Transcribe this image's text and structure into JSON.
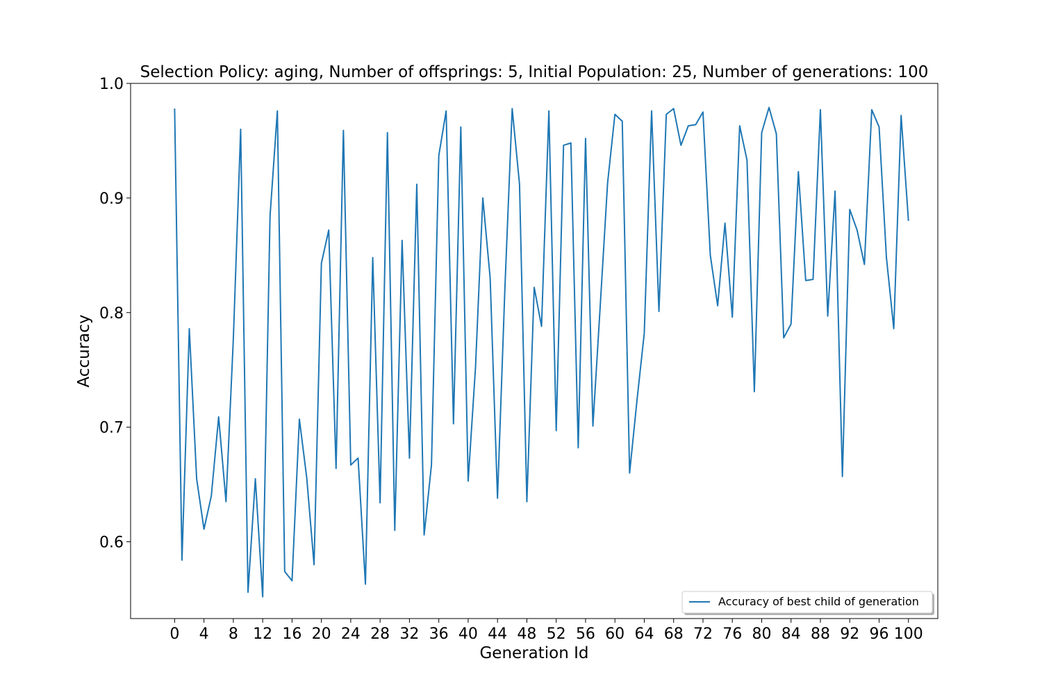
{
  "colors": {
    "line": "#1f77b4",
    "axes": "#000000",
    "background": "#ffffff"
  },
  "chart_data": {
    "type": "line",
    "title": "Selection Policy: aging, Number of offsprings: 5, Initial Population: 25, Number of generations: 100",
    "xlabel": "Generation Id",
    "ylabel": "Accuracy",
    "xlim": [
      -6,
      104
    ],
    "ylim": [
      0.533,
      1.0
    ],
    "xticks": [
      0,
      4,
      8,
      12,
      16,
      20,
      24,
      28,
      32,
      36,
      40,
      44,
      48,
      52,
      56,
      60,
      64,
      68,
      72,
      76,
      80,
      84,
      88,
      92,
      96,
      100
    ],
    "xtick_labels": [
      "0",
      "4",
      "8",
      "12",
      "16",
      "20",
      "24",
      "28",
      "32",
      "36",
      "40",
      "44",
      "48",
      "52",
      "56",
      "60",
      "64",
      "68",
      "72",
      "76",
      "80",
      "84",
      "88",
      "92",
      "96",
      "100"
    ],
    "yticks": [
      0.6,
      0.7,
      0.8,
      0.9,
      1.0
    ],
    "ytick_labels": [
      "0.6",
      "0.7",
      "0.8",
      "0.9",
      "1.0"
    ],
    "grid": false,
    "legend_position": "lower-right",
    "series": [
      {
        "name": "Accuracy of best child of generation",
        "x": [
          0,
          1,
          2,
          3,
          4,
          5,
          6,
          7,
          8,
          9,
          10,
          11,
          12,
          13,
          14,
          15,
          16,
          17,
          18,
          19,
          20,
          21,
          22,
          23,
          24,
          25,
          26,
          27,
          28,
          29,
          30,
          31,
          32,
          33,
          34,
          35,
          36,
          37,
          38,
          39,
          40,
          41,
          42,
          43,
          44,
          45,
          46,
          47,
          48,
          49,
          50,
          51,
          52,
          53,
          54,
          55,
          56,
          57,
          58,
          59,
          60,
          61,
          62,
          63,
          64,
          65,
          66,
          67,
          68,
          69,
          70,
          71,
          72,
          73,
          74,
          75,
          76,
          77,
          78,
          79,
          80,
          81,
          82,
          83,
          84,
          85,
          86,
          87,
          88,
          89,
          90,
          91,
          92,
          93,
          94,
          95,
          96,
          97,
          98,
          99,
          100
        ],
        "values": [
          0.978,
          0.584,
          0.786,
          0.655,
          0.611,
          0.64,
          0.709,
          0.635,
          0.777,
          0.96,
          0.556,
          0.655,
          0.552,
          0.884,
          0.976,
          0.574,
          0.566,
          0.707,
          0.656,
          0.58,
          0.843,
          0.872,
          0.664,
          0.959,
          0.667,
          0.673,
          0.563,
          0.848,
          0.634,
          0.957,
          0.61,
          0.863,
          0.673,
          0.912,
          0.606,
          0.667,
          0.937,
          0.976,
          0.703,
          0.962,
          0.653,
          0.752,
          0.9,
          0.83,
          0.638,
          0.82,
          0.978,
          0.912,
          0.635,
          0.822,
          0.788,
          0.976,
          0.697,
          0.946,
          0.948,
          0.682,
          0.952,
          0.701,
          0.806,
          0.913,
          0.973,
          0.967,
          0.66,
          0.723,
          0.782,
          0.976,
          0.801,
          0.973,
          0.978,
          0.946,
          0.963,
          0.964,
          0.975,
          0.85,
          0.806,
          0.878,
          0.796,
          0.963,
          0.933,
          0.731,
          0.957,
          0.979,
          0.956,
          0.778,
          0.79,
          0.923,
          0.828,
          0.829,
          0.977,
          0.797,
          0.906,
          0.657,
          0.89,
          0.872,
          0.842,
          0.977,
          0.962,
          0.848,
          0.786,
          0.972,
          0.88
        ]
      }
    ]
  }
}
